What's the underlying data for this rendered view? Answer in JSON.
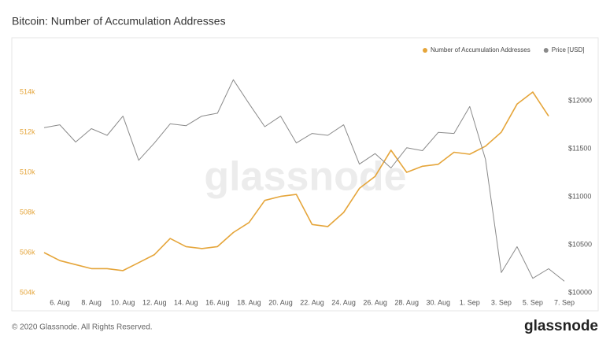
{
  "chart_data": {
    "type": "line",
    "title": "Bitcoin: Number of Accumulation Addresses",
    "watermark": "glassnode",
    "categories": [
      null,
      "6. Aug",
      null,
      "8. Aug",
      null,
      "10. Aug",
      null,
      "12. Aug",
      null,
      "14. Aug",
      null,
      "16. Aug",
      null,
      "18. Aug",
      null,
      "20. Aug",
      null,
      "22. Aug",
      null,
      "24. Aug",
      null,
      "26. Aug",
      null,
      "28. Aug",
      null,
      "30. Aug",
      null,
      "1. Sep",
      null,
      "3. Sep",
      null,
      "5. Sep",
      null,
      "7. Sep"
    ],
    "series": [
      {
        "name": "Number of Accumulation Addresses",
        "color": "#e5a53a",
        "values": [
          506000,
          505600,
          505400,
          505200,
          505200,
          505100,
          505500,
          505900,
          506700,
          506300,
          506200,
          506300,
          507000,
          507500,
          508600,
          508800,
          508900,
          507400,
          507300,
          508000,
          509200,
          509800,
          511100,
          510000,
          510300,
          510400,
          511000,
          510900,
          511300,
          512000,
          513400,
          514000,
          512800,
          null
        ]
      },
      {
        "name": "Price [USD]",
        "color": "#8a8a8a",
        "axis": "y2",
        "values": [
          11720,
          11750,
          11570,
          11710,
          11640,
          11840,
          11380,
          11560,
          11760,
          11740,
          11840,
          11870,
          12220,
          11970,
          11730,
          11840,
          11560,
          11660,
          11640,
          11750,
          11340,
          11450,
          11300,
          11510,
          11480,
          11670,
          11660,
          11940,
          11390,
          10210,
          10480,
          10150,
          10250,
          10120
        ]
      }
    ],
    "ylim": [
      504000,
      515000
    ],
    "yticks": [
      {
        "value": 504000,
        "label": "504k"
      },
      {
        "value": 506000,
        "label": "506k"
      },
      {
        "value": 508000,
        "label": "508k"
      },
      {
        "value": 510000,
        "label": "510k"
      },
      {
        "value": 512000,
        "label": "512k"
      },
      {
        "value": 514000,
        "label": "514k"
      }
    ],
    "y2lim": [
      10000,
      12300
    ],
    "y2ticks": [
      {
        "value": 10000,
        "label": "$10000"
      },
      {
        "value": 10500,
        "label": "$10500"
      },
      {
        "value": 11000,
        "label": "$11000"
      },
      {
        "value": 11500,
        "label": "$11500"
      },
      {
        "value": 12000,
        "label": "$12000"
      }
    ],
    "legend": "top-right",
    "grid": false
  },
  "footer": {
    "copyright": "© 2020 Glassnode. All Rights Reserved.",
    "logo": "glassnode"
  }
}
